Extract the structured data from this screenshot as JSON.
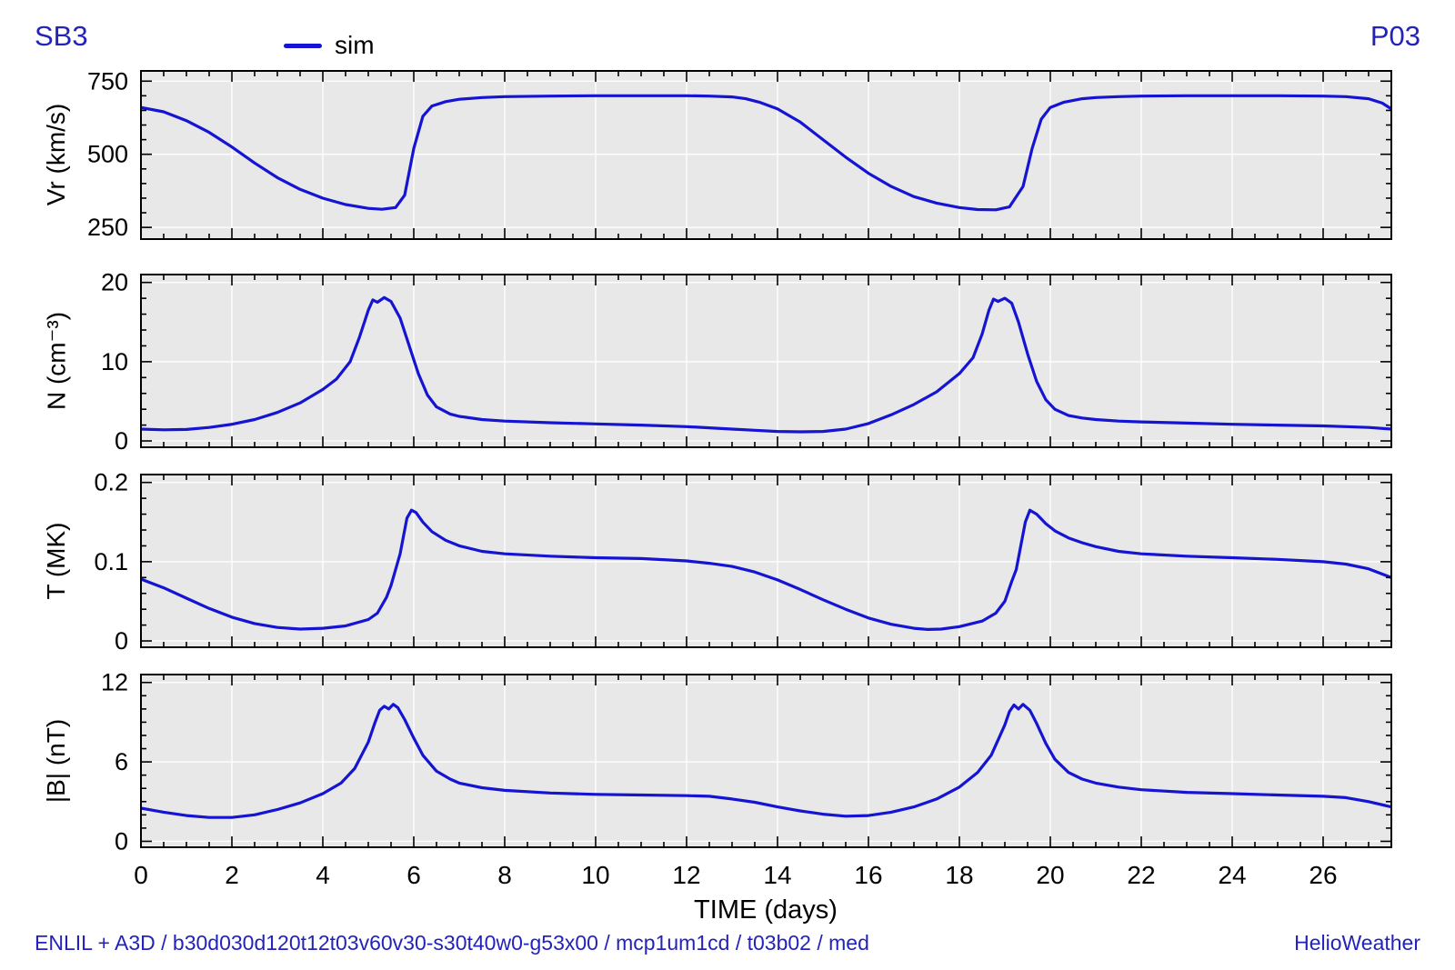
{
  "title_left": "SB3",
  "title_right": "P03",
  "footer_left": "ENLIL + A3D / b30d030d120t12t03v60v30-s30t40w0-g53x00 / mcp1um1cd / t03b02 / med",
  "footer_right": "HelioWeather",
  "colors": {
    "accent_text": "#2323bb",
    "line": "#1414d2",
    "panel_bg": "#e8e8e8",
    "grid": "#ffffff",
    "frame": "#000000"
  },
  "chart_data": {
    "type": "line",
    "xlabel": "TIME (days)",
    "xlim": [
      0,
      27.5
    ],
    "x_major_ticks": [
      0,
      2,
      4,
      6,
      8,
      10,
      12,
      14,
      16,
      18,
      20,
      22,
      24,
      26
    ],
    "x_minor_step": 0.5,
    "grid": true,
    "legend": [
      {
        "label": "sim",
        "color": "#1414d2"
      }
    ],
    "panels": [
      {
        "name": "Vr",
        "ylabel": "Vr (km/s)",
        "ylim": [
          210,
          785
        ],
        "yticks": [
          250,
          500,
          750
        ],
        "y_minor_step": 50,
        "series": {
          "name": "sim",
          "points": [
            [
              0,
              660
            ],
            [
              0.5,
              645
            ],
            [
              1,
              615
            ],
            [
              1.5,
              575
            ],
            [
              2,
              525
            ],
            [
              2.5,
              470
            ],
            [
              3,
              420
            ],
            [
              3.5,
              380
            ],
            [
              4,
              350
            ],
            [
              4.5,
              328
            ],
            [
              5,
              315
            ],
            [
              5.3,
              312
            ],
            [
              5.6,
              318
            ],
            [
              5.8,
              360
            ],
            [
              6,
              520
            ],
            [
              6.2,
              630
            ],
            [
              6.4,
              665
            ],
            [
              6.7,
              680
            ],
            [
              7,
              688
            ],
            [
              7.5,
              694
            ],
            [
              8,
              697
            ],
            [
              9,
              699
            ],
            [
              10,
              700
            ],
            [
              11,
              700
            ],
            [
              12,
              700
            ],
            [
              12.5,
              699
            ],
            [
              13,
              696
            ],
            [
              13.3,
              690
            ],
            [
              13.6,
              678
            ],
            [
              14,
              655
            ],
            [
              14.5,
              610
            ],
            [
              15,
              550
            ],
            [
              15.5,
              490
            ],
            [
              16,
              435
            ],
            [
              16.5,
              390
            ],
            [
              17,
              355
            ],
            [
              17.5,
              333
            ],
            [
              18,
              318
            ],
            [
              18.4,
              311
            ],
            [
              18.8,
              310
            ],
            [
              19.1,
              320
            ],
            [
              19.4,
              390
            ],
            [
              19.6,
              520
            ],
            [
              19.8,
              620
            ],
            [
              20,
              660
            ],
            [
              20.3,
              678
            ],
            [
              20.7,
              690
            ],
            [
              21,
              694
            ],
            [
              21.5,
              697
            ],
            [
              22,
              699
            ],
            [
              23,
              700
            ],
            [
              24,
              700
            ],
            [
              25,
              700
            ],
            [
              26,
              699
            ],
            [
              26.5,
              697
            ],
            [
              27,
              690
            ],
            [
              27.3,
              675
            ],
            [
              27.5,
              655
            ]
          ]
        }
      },
      {
        "name": "N",
        "ylabel": "N (cm⁻³)",
        "ylim": [
          -0.8,
          21
        ],
        "yticks": [
          0,
          10,
          20
        ],
        "y_minor_step": 2,
        "series": {
          "name": "sim",
          "points": [
            [
              0,
              1.5
            ],
            [
              0.5,
              1.4
            ],
            [
              1,
              1.45
            ],
            [
              1.5,
              1.7
            ],
            [
              2,
              2.1
            ],
            [
              2.5,
              2.7
            ],
            [
              3,
              3.6
            ],
            [
              3.5,
              4.8
            ],
            [
              4,
              6.5
            ],
            [
              4.3,
              7.8
            ],
            [
              4.6,
              10
            ],
            [
              4.8,
              13
            ],
            [
              5,
              16.5
            ],
            [
              5.1,
              17.8
            ],
            [
              5.2,
              17.5
            ],
            [
              5.35,
              18.1
            ],
            [
              5.5,
              17.6
            ],
            [
              5.7,
              15.5
            ],
            [
              5.9,
              12
            ],
            [
              6.1,
              8.5
            ],
            [
              6.3,
              5.8
            ],
            [
              6.5,
              4.3
            ],
            [
              6.8,
              3.4
            ],
            [
              7,
              3.1
            ],
            [
              7.5,
              2.7
            ],
            [
              8,
              2.5
            ],
            [
              9,
              2.3
            ],
            [
              10,
              2.15
            ],
            [
              11,
              2
            ],
            [
              12,
              1.8
            ],
            [
              12.5,
              1.65
            ],
            [
              13,
              1.5
            ],
            [
              13.5,
              1.35
            ],
            [
              14,
              1.2
            ],
            [
              14.5,
              1.15
            ],
            [
              15,
              1.2
            ],
            [
              15.5,
              1.5
            ],
            [
              16,
              2.2
            ],
            [
              16.5,
              3.3
            ],
            [
              17,
              4.6
            ],
            [
              17.5,
              6.2
            ],
            [
              18,
              8.5
            ],
            [
              18.3,
              10.5
            ],
            [
              18.5,
              13.5
            ],
            [
              18.65,
              16.5
            ],
            [
              18.75,
              17.9
            ],
            [
              18.85,
              17.6
            ],
            [
              19,
              18
            ],
            [
              19.15,
              17.4
            ],
            [
              19.3,
              15
            ],
            [
              19.5,
              11
            ],
            [
              19.7,
              7.5
            ],
            [
              19.9,
              5.2
            ],
            [
              20.1,
              4
            ],
            [
              20.4,
              3.2
            ],
            [
              20.7,
              2.9
            ],
            [
              21,
              2.7
            ],
            [
              21.5,
              2.5
            ],
            [
              22,
              2.4
            ],
            [
              23,
              2.25
            ],
            [
              24,
              2.1
            ],
            [
              25,
              2
            ],
            [
              26,
              1.9
            ],
            [
              26.5,
              1.8
            ],
            [
              27,
              1.7
            ],
            [
              27.5,
              1.5
            ]
          ]
        }
      },
      {
        "name": "T",
        "ylabel": "T (MK)",
        "ylim": [
          -0.008,
          0.21
        ],
        "yticks": [
          0,
          0.1,
          0.2
        ],
        "y_minor_step": 0.02,
        "series": {
          "name": "sim",
          "points": [
            [
              0,
              0.078
            ],
            [
              0.5,
              0.067
            ],
            [
              1,
              0.054
            ],
            [
              1.5,
              0.041
            ],
            [
              2,
              0.03
            ],
            [
              2.5,
              0.022
            ],
            [
              3,
              0.017
            ],
            [
              3.5,
              0.015
            ],
            [
              4,
              0.016
            ],
            [
              4.5,
              0.019
            ],
            [
              5,
              0.027
            ],
            [
              5.2,
              0.035
            ],
            [
              5.4,
              0.055
            ],
            [
              5.5,
              0.07
            ],
            [
              5.6,
              0.09
            ],
            [
              5.7,
              0.11
            ],
            [
              5.75,
              0.125
            ],
            [
              5.85,
              0.155
            ],
            [
              5.95,
              0.165
            ],
            [
              6.05,
              0.162
            ],
            [
              6.2,
              0.15
            ],
            [
              6.4,
              0.138
            ],
            [
              6.7,
              0.127
            ],
            [
              7,
              0.12
            ],
            [
              7.5,
              0.113
            ],
            [
              8,
              0.11
            ],
            [
              9,
              0.107
            ],
            [
              10,
              0.105
            ],
            [
              11,
              0.104
            ],
            [
              12,
              0.101
            ],
            [
              12.5,
              0.098
            ],
            [
              13,
              0.094
            ],
            [
              13.5,
              0.087
            ],
            [
              14,
              0.077
            ],
            [
              14.5,
              0.065
            ],
            [
              15,
              0.052
            ],
            [
              15.5,
              0.04
            ],
            [
              16,
              0.029
            ],
            [
              16.5,
              0.021
            ],
            [
              17,
              0.016
            ],
            [
              17.3,
              0.0145
            ],
            [
              17.6,
              0.015
            ],
            [
              18,
              0.018
            ],
            [
              18.5,
              0.025
            ],
            [
              18.8,
              0.035
            ],
            [
              19,
              0.05
            ],
            [
              19.15,
              0.075
            ],
            [
              19.25,
              0.09
            ],
            [
              19.35,
              0.12
            ],
            [
              19.45,
              0.15
            ],
            [
              19.55,
              0.165
            ],
            [
              19.7,
              0.16
            ],
            [
              19.9,
              0.148
            ],
            [
              20.1,
              0.139
            ],
            [
              20.4,
              0.13
            ],
            [
              20.7,
              0.124
            ],
            [
              21,
              0.119
            ],
            [
              21.5,
              0.113
            ],
            [
              22,
              0.11
            ],
            [
              23,
              0.107
            ],
            [
              24,
              0.105
            ],
            [
              25,
              0.103
            ],
            [
              26,
              0.1
            ],
            [
              26.5,
              0.097
            ],
            [
              27,
              0.091
            ],
            [
              27.5,
              0.08
            ]
          ]
        }
      },
      {
        "name": "B",
        "ylabel": "|B| (nT)",
        "ylim": [
          -0.45,
          12.6
        ],
        "yticks": [
          0,
          6,
          12
        ],
        "y_minor_step": 1,
        "series": {
          "name": "sim",
          "points": [
            [
              0,
              2.5
            ],
            [
              0.5,
              2.2
            ],
            [
              1,
              1.95
            ],
            [
              1.5,
              1.8
            ],
            [
              2,
              1.8
            ],
            [
              2.5,
              2
            ],
            [
              3,
              2.4
            ],
            [
              3.5,
              2.9
            ],
            [
              4,
              3.6
            ],
            [
              4.4,
              4.4
            ],
            [
              4.7,
              5.5
            ],
            [
              5,
              7.5
            ],
            [
              5.15,
              9
            ],
            [
              5.25,
              9.9
            ],
            [
              5.35,
              10.2
            ],
            [
              5.45,
              10
            ],
            [
              5.55,
              10.35
            ],
            [
              5.65,
              10.1
            ],
            [
              5.8,
              9.2
            ],
            [
              6,
              7.8
            ],
            [
              6.2,
              6.5
            ],
            [
              6.5,
              5.3
            ],
            [
              6.8,
              4.7
            ],
            [
              7,
              4.4
            ],
            [
              7.5,
              4.05
            ],
            [
              8,
              3.85
            ],
            [
              9,
              3.65
            ],
            [
              10,
              3.55
            ],
            [
              11,
              3.5
            ],
            [
              12,
              3.45
            ],
            [
              12.5,
              3.4
            ],
            [
              13,
              3.2
            ],
            [
              13.5,
              2.95
            ],
            [
              14,
              2.6
            ],
            [
              14.5,
              2.3
            ],
            [
              15,
              2.05
            ],
            [
              15.5,
              1.9
            ],
            [
              16,
              1.95
            ],
            [
              16.5,
              2.2
            ],
            [
              17,
              2.6
            ],
            [
              17.5,
              3.2
            ],
            [
              18,
              4.1
            ],
            [
              18.4,
              5.2
            ],
            [
              18.7,
              6.5
            ],
            [
              19,
              8.8
            ],
            [
              19.1,
              9.8
            ],
            [
              19.2,
              10.3
            ],
            [
              19.3,
              10
            ],
            [
              19.4,
              10.35
            ],
            [
              19.55,
              9.9
            ],
            [
              19.7,
              8.9
            ],
            [
              19.9,
              7.4
            ],
            [
              20.1,
              6.2
            ],
            [
              20.4,
              5.2
            ],
            [
              20.7,
              4.7
            ],
            [
              21,
              4.4
            ],
            [
              21.5,
              4.1
            ],
            [
              22,
              3.9
            ],
            [
              23,
              3.7
            ],
            [
              24,
              3.6
            ],
            [
              25,
              3.5
            ],
            [
              26,
              3.4
            ],
            [
              26.5,
              3.3
            ],
            [
              27,
              3
            ],
            [
              27.5,
              2.6
            ]
          ]
        }
      }
    ]
  }
}
